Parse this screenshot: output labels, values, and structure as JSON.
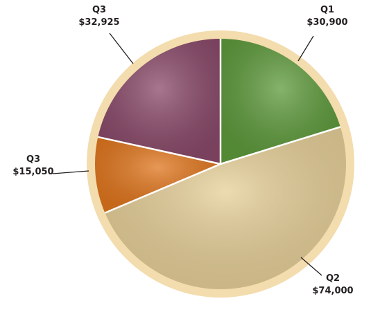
{
  "chart_data": {
    "type": "pie",
    "categories": [
      "Q1",
      "Q2",
      "Q3",
      "Q3"
    ],
    "values": [
      30900,
      74000,
      15050,
      32925
    ],
    "value_labels": [
      "$30,900",
      "$74,000",
      "$15,050",
      "$32,925"
    ],
    "colors": [
      "#5e9a3c",
      "#e6cf98",
      "#e0761e",
      "#8a4a6a"
    ]
  }
}
